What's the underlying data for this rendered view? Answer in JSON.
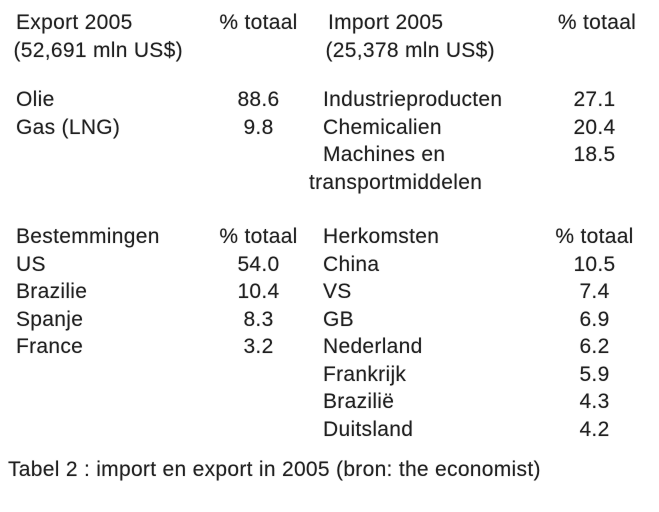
{
  "page": {
    "background": "#ffffff",
    "text_color": "#212121"
  },
  "tables": {
    "export": {
      "title_line1": "Export 2005",
      "title_line2": "(52,691 mln US$)",
      "value_header": "% totaal",
      "rows": [
        {
          "label": "Olie",
          "value": "88.6"
        },
        {
          "label": "Gas (LNG)",
          "value": "9.8"
        }
      ]
    },
    "import": {
      "title_line1": "Import 2005",
      "title_line2": "(25,378 mln US$)",
      "value_header": "% totaal",
      "rows": [
        {
          "label": "Industrieproducten",
          "value": "27.1"
        },
        {
          "label": "Chemicalien",
          "value": "20.4"
        },
        {
          "label_line1": "Machines en",
          "label_line2": "transportmiddelen",
          "value": "18.5"
        }
      ]
    },
    "destinations": {
      "header": "Bestemmingen",
      "value_header": "% totaal",
      "rows": [
        {
          "label": "US",
          "value": "54.0"
        },
        {
          "label": "Brazilie",
          "value": "10.4"
        },
        {
          "label": "Spanje",
          "value": "8.3"
        },
        {
          "label": "France",
          "value": "3.2"
        }
      ]
    },
    "origins": {
      "header": "Herkomsten",
      "value_header": "% totaal",
      "rows": [
        {
          "label": "China",
          "value": "10.5"
        },
        {
          "label": "VS",
          "value": "7.4"
        },
        {
          "label": "GB",
          "value": "6.9"
        },
        {
          "label": "Nederland",
          "value": "6.2"
        },
        {
          "label": "Frankrijk",
          "value": "5.9"
        },
        {
          "label": "Brazilië",
          "value": "4.3"
        },
        {
          "label": "Duitsland",
          "value": "4.2"
        }
      ]
    }
  },
  "caption": "Tabel 2 : import en export in 2005 (bron: the economist)"
}
